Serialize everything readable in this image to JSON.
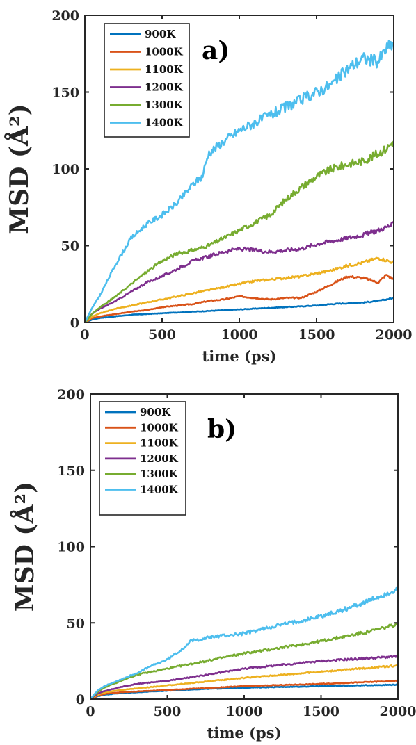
{
  "chart_data": [
    {
      "type": "line",
      "panel_label": "a)",
      "xlabel": "time (ps)",
      "ylabel": "MSD (Å²)",
      "xlim": [
        0,
        2000
      ],
      "ylim": [
        0,
        200
      ],
      "xticks": [
        0,
        500,
        1000,
        1500,
        2000
      ],
      "yticks": [
        0,
        50,
        100,
        150,
        200
      ],
      "legend": "top-left",
      "grid": false,
      "series": [
        {
          "name": "900K",
          "color": "#0072BD",
          "x": [
            0,
            50,
            100,
            200,
            300,
            400,
            500,
            600,
            700,
            800,
            900,
            1000,
            1100,
            1200,
            1300,
            1400,
            1500,
            1600,
            1700,
            1800,
            1900,
            2000
          ],
          "y": [
            0,
            2,
            3,
            4,
            5,
            5.5,
            6,
            6.5,
            7,
            7.5,
            8,
            8.5,
            9,
            9.5,
            10,
            10.5,
            11,
            12,
            12.5,
            13,
            14,
            16
          ]
        },
        {
          "name": "1000K",
          "color": "#D95319",
          "x": [
            0,
            50,
            100,
            200,
            300,
            400,
            500,
            600,
            700,
            800,
            900,
            1000,
            1100,
            1200,
            1300,
            1400,
            1500,
            1600,
            1700,
            1800,
            1900,
            1950,
            2000
          ],
          "y": [
            0,
            3,
            4,
            5.5,
            7,
            8,
            10,
            11,
            12,
            14,
            15,
            17,
            16,
            15,
            16,
            16,
            20,
            25,
            30,
            29,
            26,
            31,
            28
          ]
        },
        {
          "name": "1100K",
          "color": "#EDB120",
          "x": [
            0,
            50,
            100,
            200,
            300,
            400,
            500,
            600,
            700,
            800,
            900,
            1000,
            1100,
            1200,
            1300,
            1400,
            1500,
            1600,
            1700,
            1800,
            1900,
            2000
          ],
          "y": [
            0,
            4,
            6,
            9,
            11,
            13,
            15,
            17,
            19,
            21,
            23,
            25,
            27,
            28,
            29,
            30,
            32,
            34,
            37,
            39,
            42,
            39
          ]
        },
        {
          "name": "1200K",
          "color": "#7E2F8E",
          "x": [
            0,
            50,
            100,
            200,
            300,
            400,
            500,
            600,
            700,
            800,
            900,
            1000,
            1100,
            1200,
            1300,
            1400,
            1500,
            1600,
            1700,
            1800,
            1900,
            2000
          ],
          "y": [
            0,
            6,
            9,
            14,
            20,
            26,
            30,
            35,
            40,
            43,
            46,
            48,
            47,
            46,
            47,
            48,
            51,
            53,
            55,
            57,
            60,
            64
          ]
        },
        {
          "name": "1300K",
          "color": "#77AC30",
          "x": [
            0,
            50,
            100,
            200,
            300,
            400,
            500,
            600,
            700,
            800,
            900,
            1000,
            1100,
            1200,
            1300,
            1400,
            1500,
            1600,
            1700,
            1800,
            1900,
            1950,
            2000
          ],
          "y": [
            0,
            6,
            10,
            17,
            25,
            33,
            40,
            45,
            47,
            50,
            55,
            60,
            65,
            70,
            80,
            88,
            95,
            100,
            103,
            105,
            110,
            113,
            118
          ]
        },
        {
          "name": "1400K",
          "color": "#4DBEEE",
          "x": [
            0,
            50,
            100,
            200,
            300,
            400,
            500,
            600,
            700,
            760,
            800,
            900,
            1000,
            1100,
            1200,
            1300,
            1400,
            1500,
            1600,
            1700,
            1800,
            1900,
            1950,
            2000
          ],
          "y": [
            0,
            10,
            18,
            38,
            55,
            64,
            70,
            78,
            90,
            95,
            110,
            118,
            125,
            130,
            135,
            140,
            145,
            150,
            155,
            165,
            172,
            170,
            178,
            182
          ]
        }
      ]
    },
    {
      "type": "line",
      "panel_label": "b)",
      "xlabel": "time (ps)",
      "ylabel": "MSD (Å²)",
      "xlim": [
        0,
        2000
      ],
      "ylim": [
        0,
        200
      ],
      "xticks": [
        0,
        500,
        1000,
        1500,
        2000
      ],
      "yticks": [
        0,
        50,
        100,
        150,
        200
      ],
      "legend": "top-left",
      "grid": false,
      "series": [
        {
          "name": "900K",
          "color": "#0072BD",
          "x": [
            0,
            50,
            100,
            200,
            300,
            400,
            500,
            700,
            1000,
            1500,
            2000
          ],
          "y": [
            0,
            2,
            3,
            4,
            4.5,
            5,
            5.5,
            6.5,
            7.5,
            8.5,
            9.5
          ]
        },
        {
          "name": "1000K",
          "color": "#D95319",
          "x": [
            0,
            50,
            100,
            200,
            300,
            400,
            500,
            700,
            1000,
            1500,
            2000
          ],
          "y": [
            0,
            2.5,
            3.5,
            4.5,
            5,
            5.5,
            6,
            7,
            8.5,
            10,
            12
          ]
        },
        {
          "name": "1100K",
          "color": "#EDB120",
          "x": [
            0,
            50,
            100,
            200,
            300,
            400,
            500,
            700,
            1000,
            1500,
            2000
          ],
          "y": [
            0,
            3,
            4.5,
            6,
            7,
            8,
            9,
            11,
            14,
            18,
            22
          ]
        },
        {
          "name": "1200K",
          "color": "#7E2F8E",
          "x": [
            0,
            50,
            100,
            200,
            300,
            400,
            500,
            700,
            1000,
            1500,
            2000
          ],
          "y": [
            0,
            4,
            5.5,
            8,
            10,
            11,
            12,
            15,
            20,
            25,
            28
          ]
        },
        {
          "name": "1300K",
          "color": "#77AC30",
          "x": [
            0,
            50,
            100,
            200,
            300,
            400,
            500,
            700,
            1000,
            1200,
            1500,
            1800,
            2000
          ],
          "y": [
            0,
            5,
            8,
            12,
            16,
            18,
            20,
            24,
            30,
            33,
            38,
            44,
            49
          ]
        },
        {
          "name": "1400K",
          "color": "#4DBEEE",
          "x": [
            0,
            50,
            100,
            200,
            300,
            400,
            500,
            600,
            650,
            700,
            800,
            1000,
            1200,
            1400,
            1600,
            1800,
            2000
          ],
          "y": [
            0,
            6,
            9,
            13,
            17,
            22,
            26,
            33,
            38,
            39,
            41,
            43,
            48,
            52,
            57,
            64,
            72
          ]
        }
      ]
    }
  ]
}
